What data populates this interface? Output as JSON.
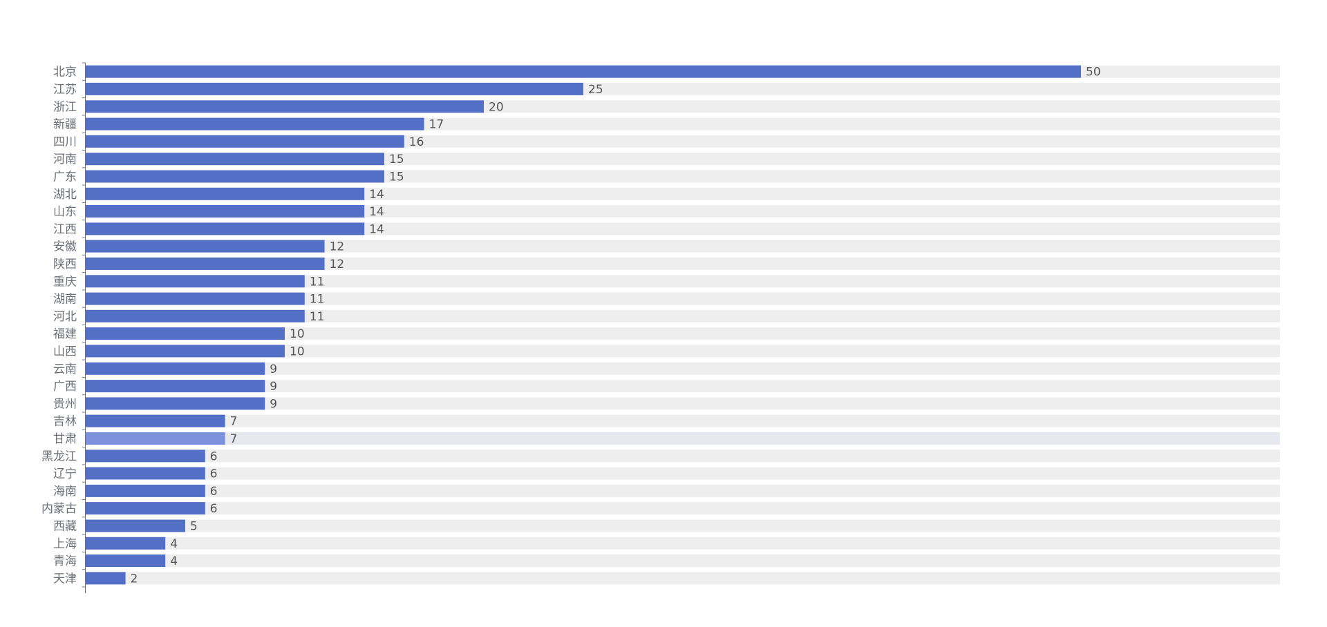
{
  "chart_data": {
    "type": "bar",
    "orientation": "horizontal",
    "categories": [
      "北京",
      "江苏",
      "浙江",
      "新疆",
      "四川",
      "河南",
      "广东",
      "湖北",
      "山东",
      "江西",
      "安徽",
      "陕西",
      "重庆",
      "湖南",
      "河北",
      "福建",
      "山西",
      "云南",
      "广西",
      "贵州",
      "吉林",
      "甘肃",
      "黑龙江",
      "辽宁",
      "海南",
      "内蒙古",
      "西藏",
      "上海",
      "青海",
      "天津"
    ],
    "series": [
      {
        "values": [
          50,
          25,
          20,
          17,
          16,
          15,
          15,
          14,
          14,
          14,
          12,
          12,
          11,
          11,
          11,
          10,
          10,
          9,
          9,
          9,
          7,
          7,
          6,
          6,
          6,
          6,
          5,
          4,
          4,
          2
        ]
      }
    ],
    "xlim": [
      0,
      60
    ],
    "title": "",
    "xlabel": "",
    "ylabel": "",
    "highlighted_category": "甘肃",
    "show_background_bars": true,
    "grid": false,
    "colors": {
      "bar": "#5470c6",
      "bar_highlight": "#7b91dc",
      "background_bar": "#eeeeee",
      "background_bar_highlight": "#e8e9ef",
      "axis": "#6e7079",
      "label": "#6e7079",
      "value_label": "#555555"
    }
  }
}
